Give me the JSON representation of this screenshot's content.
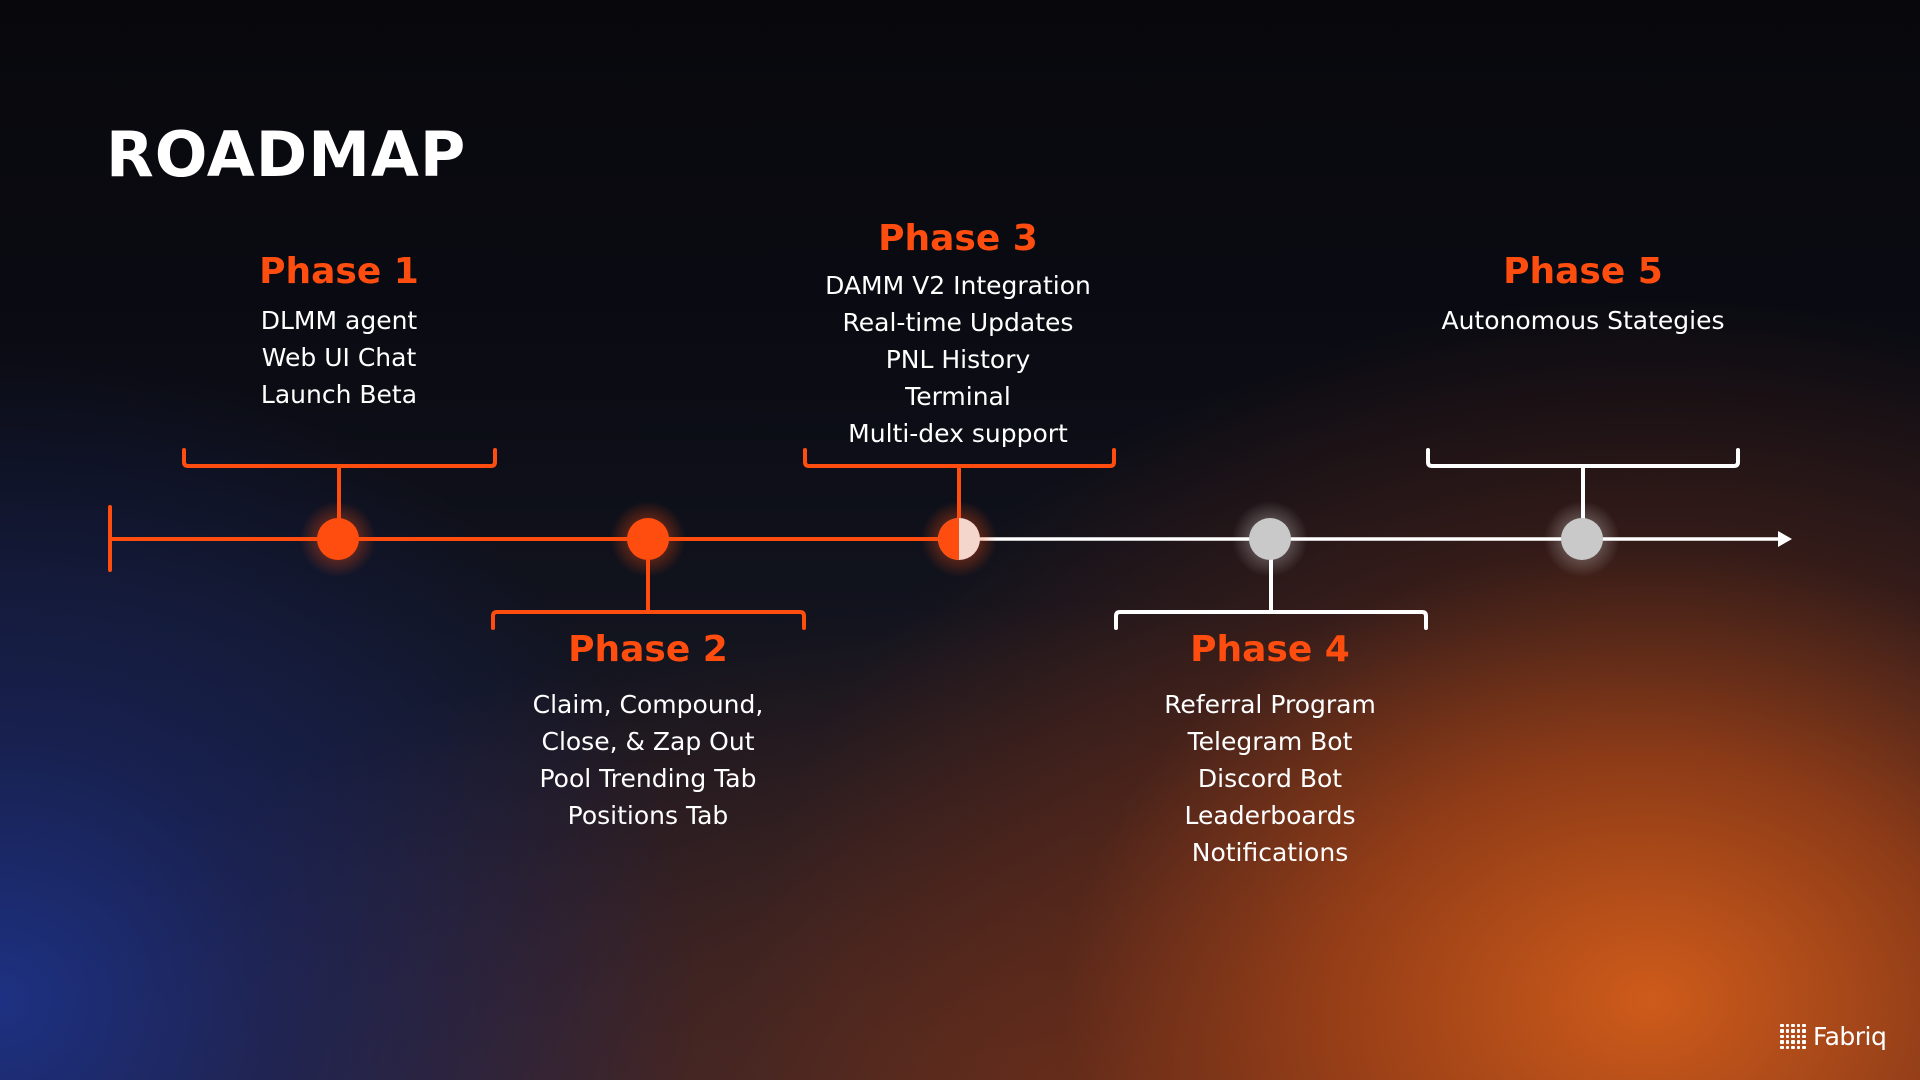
{
  "title": "ROADMAP",
  "colors": {
    "accent": "#ff4d0f",
    "completed": "#ff4d0f",
    "pending": "#ffffff",
    "pending_dot": "#c9c9c9",
    "text": "#ffffff"
  },
  "phases": [
    {
      "title": "Phase 1",
      "status": "completed",
      "items": [
        "DLMM agent",
        "Web UI Chat",
        "Launch Beta"
      ]
    },
    {
      "title": "Phase 2",
      "status": "completed",
      "items": [
        "Claim, Compound,",
        "Close, & Zap Out",
        "Pool Trending Tab",
        "Positions Tab"
      ]
    },
    {
      "title": "Phase 3",
      "status": "in-progress",
      "items": [
        "DAMM V2 Integration",
        "Real-time Updates",
        "PNL History",
        "Terminal",
        "Multi-dex support"
      ]
    },
    {
      "title": "Phase 4",
      "status": "upcoming",
      "items": [
        "Referral Program",
        "Telegram Bot",
        "Discord Bot",
        "Leaderboards",
        "Notifications"
      ]
    },
    {
      "title": "Phase 5",
      "status": "upcoming",
      "items": [
        "Autonomous Stategies"
      ]
    }
  ],
  "logo": {
    "text": "Fabriq",
    "icon": "dot-grid-icon"
  }
}
